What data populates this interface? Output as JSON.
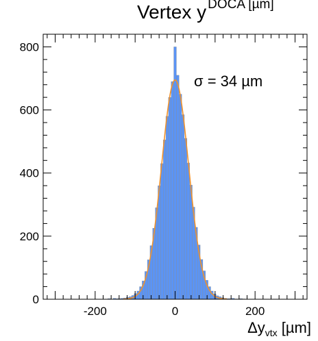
{
  "chart_data": {
    "type": "bar",
    "title_main": "Vertex y",
    "title_sup": "DOCA [µm]",
    "xlabel_main": "Δy",
    "xlabel_sub": "vtx",
    "xlabel_unit": " [µm]",
    "annotation": "σ = 34 µm",
    "xlim": [
      -330,
      330
    ],
    "ylim": [
      0,
      840
    ],
    "x_ticks": [
      -200,
      0,
      200
    ],
    "y_ticks": [
      0,
      200,
      400,
      600,
      800
    ],
    "bin_width": 6.6,
    "bin_centers": [
      -323.4,
      -316.8,
      -310.2,
      -303.6,
      -297.0,
      -290.4,
      -283.8,
      -277.2,
      -270.6,
      -264.0,
      -257.4,
      -250.8,
      -244.2,
      -237.6,
      -231.0,
      -224.4,
      -217.8,
      -211.2,
      -204.6,
      -198.0,
      -191.4,
      -184.8,
      -178.2,
      -171.6,
      -165.0,
      -158.4,
      -151.8,
      -145.2,
      -138.6,
      -132.0,
      -125.4,
      -118.8,
      -112.2,
      -105.6,
      -99.0,
      -92.4,
      -85.8,
      -79.2,
      -72.6,
      -66.0,
      -59.4,
      -52.8,
      -46.2,
      -39.6,
      -33.0,
      -26.4,
      -19.8,
      -13.2,
      -6.6,
      0.0,
      6.6,
      13.2,
      19.8,
      26.4,
      33.0,
      39.6,
      46.2,
      52.8,
      59.4,
      66.0,
      72.6,
      79.2,
      85.8,
      92.4,
      99.0,
      105.6,
      112.2,
      118.8,
      125.4,
      132.0,
      138.6,
      145.2,
      151.8,
      158.4,
      165.0,
      171.6,
      178.2,
      184.8,
      191.4,
      198.0,
      204.6,
      211.2,
      217.8,
      224.4,
      231.0,
      237.6,
      244.2,
      250.8,
      257.4,
      264.0,
      270.6,
      277.2,
      283.8,
      290.4,
      297.0,
      303.6,
      310.2,
      316.8,
      323.4
    ],
    "counts": [
      0,
      0,
      0,
      0,
      0,
      0,
      0,
      0,
      0,
      0,
      0,
      0,
      0,
      0,
      0,
      0,
      0,
      0,
      0,
      0,
      0,
      0,
      0,
      0,
      2,
      0,
      3,
      2,
      2,
      3,
      4,
      6,
      8,
      12,
      18,
      26,
      40,
      58,
      88,
      125,
      170,
      225,
      290,
      360,
      430,
      505,
      580,
      640,
      690,
      800,
      710,
      650,
      585,
      510,
      432,
      362,
      292,
      228,
      172,
      126,
      90,
      60,
      40,
      26,
      17,
      11,
      8,
      5,
      3,
      2,
      2,
      3,
      1,
      1,
      2,
      1,
      0,
      0,
      0,
      0,
      0,
      0,
      0,
      0,
      0,
      0,
      0,
      0,
      0,
      0,
      0,
      0,
      0,
      0,
      0,
      0,
      0,
      0,
      0
    ],
    "fit": {
      "type": "gaussian",
      "amplitude": 695,
      "mean": 0,
      "sigma": 34
    },
    "colors": {
      "bars": "#5b94f5",
      "bar_edge": "#8a8a8a",
      "fit": "#f0922c"
    }
  }
}
